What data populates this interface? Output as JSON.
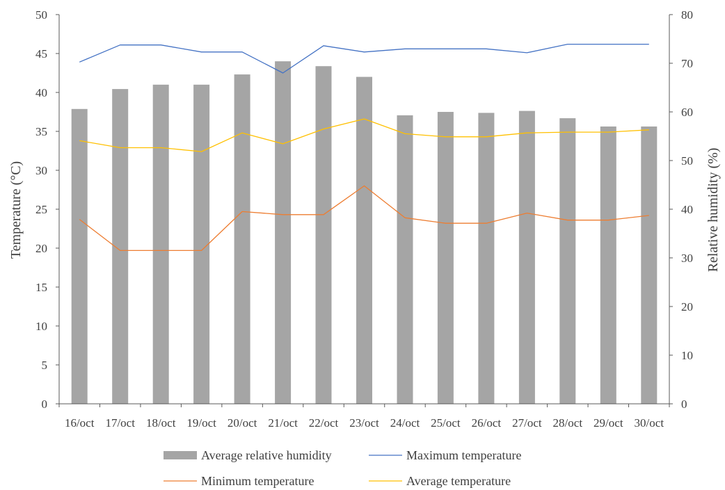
{
  "chart_data": {
    "type": "bar+line",
    "categories": [
      "16/oct",
      "17/oct",
      "18/oct",
      "19/oct",
      "20/oct",
      "21/oct",
      "22/oct",
      "23/oct",
      "24/oct",
      "25/oct",
      "26/oct",
      "27/oct",
      "28/oct",
      "29/oct",
      "30/oct"
    ],
    "y_left": {
      "label": "Temperature (°C)",
      "range": [
        0,
        50
      ],
      "ticks": [
        0,
        5,
        10,
        15,
        20,
        25,
        30,
        35,
        40,
        45,
        50
      ]
    },
    "y_right": {
      "label": "Relative humidity (%)",
      "range": [
        0,
        80
      ],
      "ticks": [
        0,
        10,
        20,
        30,
        40,
        50,
        60,
        70,
        80
      ]
    },
    "grid": false,
    "legend_position": "bottom",
    "series": [
      {
        "name": "Average relative humidity",
        "kind": "bar",
        "axis": "right",
        "color": "#a5a5a5",
        "values": [
          60.6,
          64.7,
          65.6,
          65.6,
          67.7,
          70.4,
          69.4,
          67.2,
          59.3,
          60.0,
          59.8,
          60.2,
          58.7,
          57.0,
          57.0
        ]
      },
      {
        "name": "Maximum temperature",
        "kind": "line",
        "axis": "left",
        "color": "#4472c4",
        "values": [
          43.9,
          46.1,
          46.1,
          45.2,
          45.2,
          42.5,
          46.0,
          45.2,
          45.6,
          45.6,
          45.6,
          45.1,
          46.2,
          46.2,
          46.2
        ]
      },
      {
        "name": "Minimum temperature",
        "kind": "line",
        "axis": "left",
        "color": "#ed7d31",
        "values": [
          23.7,
          19.7,
          19.7,
          19.7,
          24.7,
          24.3,
          24.3,
          28.0,
          23.9,
          23.2,
          23.2,
          24.5,
          23.6,
          23.6,
          24.2
        ]
      },
      {
        "name": "Average temperature",
        "kind": "line",
        "axis": "left",
        "color": "#ffc000",
        "values": [
          33.8,
          32.9,
          32.9,
          32.4,
          34.8,
          33.4,
          35.3,
          36.6,
          34.7,
          34.3,
          34.3,
          34.8,
          34.9,
          34.9,
          35.2
        ]
      }
    ]
  }
}
